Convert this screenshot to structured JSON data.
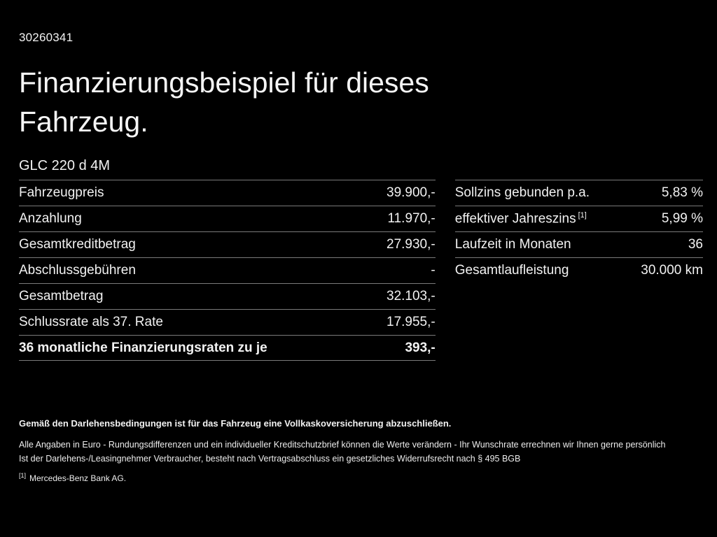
{
  "page": {
    "id_number": "30260341",
    "title_line1": "Finanzierungsbeispiel für dieses",
    "title_line2": "Fahrzeug.",
    "model": "GLC 220 d 4M"
  },
  "left_table": {
    "rows": [
      {
        "label": "Fahrzeugpreis",
        "value": "39.900,-"
      },
      {
        "label": "Anzahlung",
        "value": "11.970,-"
      },
      {
        "label": "Gesamtkreditbetrag",
        "value": "27.930,-"
      },
      {
        "label": "Abschlussgebühren",
        "value": "-"
      },
      {
        "label": "Gesamtbetrag",
        "value": "32.103,-"
      },
      {
        "label": "Schlussrate als 37. Rate",
        "value": "17.955,-"
      },
      {
        "label": "36 monatliche Finanzierungsraten zu je",
        "value": "393,-"
      }
    ]
  },
  "right_table": {
    "rows": [
      {
        "label": "Sollzins gebunden p.a.",
        "value": "5,83 %"
      },
      {
        "label": "effektiver Jahreszins",
        "sup": "[1]",
        "value": "5,99 %"
      },
      {
        "label": "Laufzeit in Monaten",
        "value": "36"
      },
      {
        "label": "Gesamtlaufleistung",
        "value": "30.000 km"
      }
    ]
  },
  "footer": {
    "bold_note": "Gemäß den Darlehensbedingungen ist für das Fahrzeug eine Vollkaskoversicherung abzuschließen.",
    "note1": "Alle Angaben in Euro - Rundungsdifferenzen und ein individueller Kreditschutzbrief können die Werte verändern - Ihr Wunschrate errechnen wir Ihnen gerne persönlich",
    "note2": "Ist der Darlehens-/Leasingnehmer Verbraucher, besteht nach Vertragsabschluss ein gesetzliches Widerrufsrecht nach § 495 BGB",
    "footnote_marker": "[1]",
    "footnote_text": "Mercedes-Benz Bank AG."
  },
  "colors": {
    "background": "#000000",
    "text": "#ffffff",
    "divider": "#7a7a7a"
  }
}
